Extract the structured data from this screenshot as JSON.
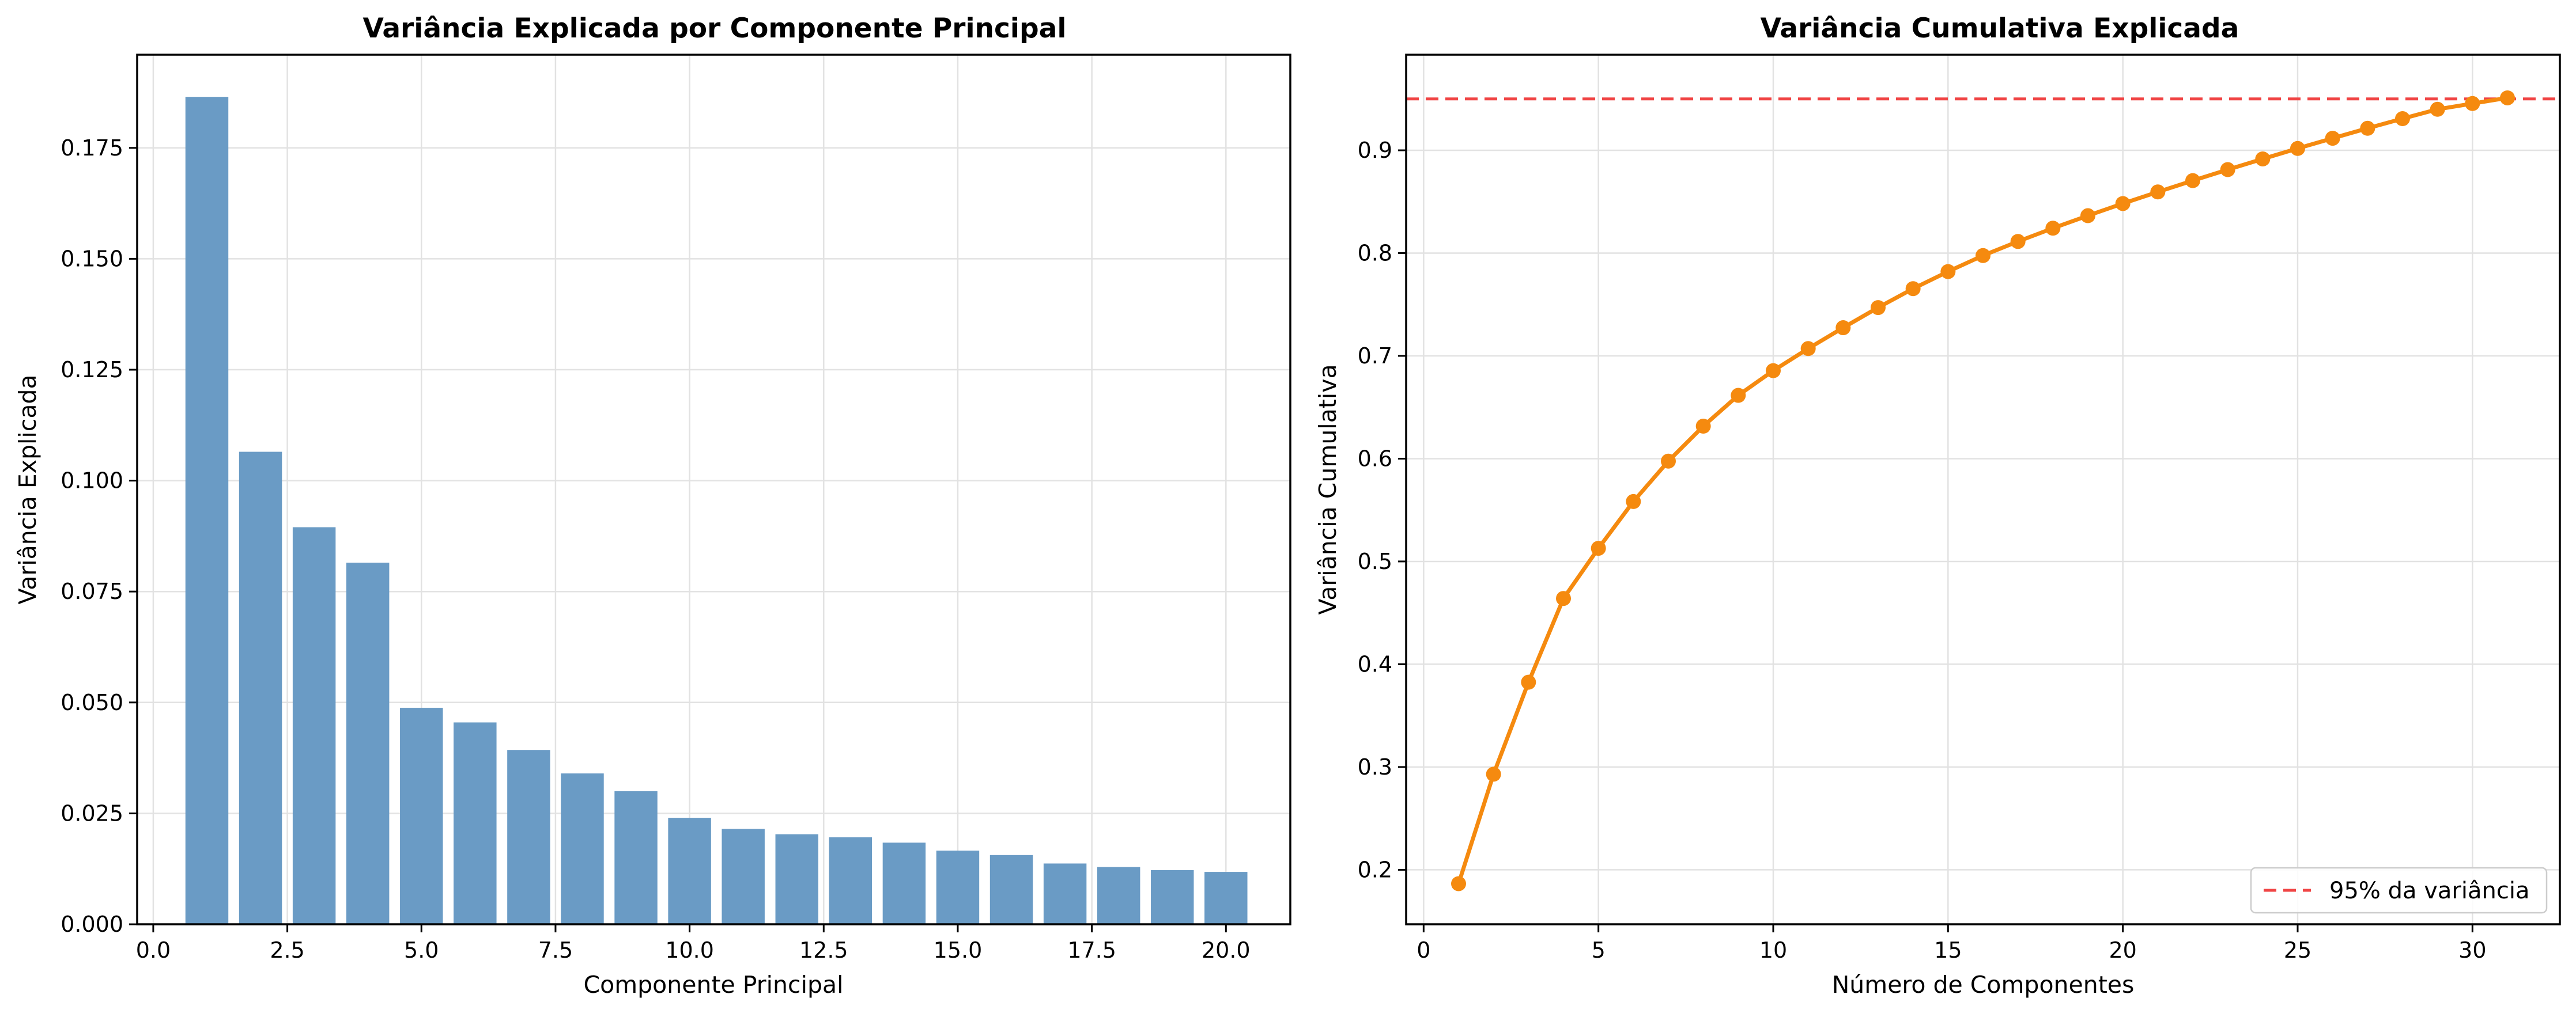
{
  "chart_data": [
    {
      "type": "bar",
      "title": "Variância Explicada por Componente Principal",
      "xlabel": "Componente Principal",
      "ylabel": "Variância Explicada",
      "x": [
        1,
        2,
        3,
        4,
        5,
        6,
        7,
        8,
        9,
        10,
        11,
        12,
        13,
        14,
        15,
        16,
        17,
        18,
        19,
        20
      ],
      "values": [
        0.1865,
        0.1065,
        0.0895,
        0.0815,
        0.0488,
        0.0455,
        0.0393,
        0.034,
        0.03,
        0.024,
        0.0215,
        0.0203,
        0.0196,
        0.0184,
        0.0166,
        0.0156,
        0.0137,
        0.0129,
        0.0122,
        0.0118
      ],
      "xlim": [
        -0.3,
        21.2
      ],
      "ylim": [
        0,
        0.196
      ],
      "xticks": [
        0.0,
        2.5,
        5.0,
        7.5,
        10.0,
        12.5,
        15.0,
        17.5,
        20.0
      ],
      "xtick_labels": [
        "0.0",
        "2.5",
        "5.0",
        "7.5",
        "10.0",
        "12.5",
        "15.0",
        "17.5",
        "20.0"
      ],
      "yticks": [
        0,
        0.025,
        0.05,
        0.075,
        0.1,
        0.125,
        0.15,
        0.175
      ],
      "ytick_labels": [
        "0.000",
        "0.025",
        "0.050",
        "0.075",
        "0.100",
        "0.125",
        "0.150",
        "0.175"
      ],
      "bar_color": "#6a9bc5",
      "grid": true
    },
    {
      "type": "line",
      "title": "Variância Cumulativa Explicada",
      "xlabel": "Número de Componentes",
      "ylabel": "Variância Cumulativa",
      "x": [
        1,
        2,
        3,
        4,
        5,
        6,
        7,
        8,
        9,
        10,
        11,
        12,
        13,
        14,
        15,
        16,
        17,
        18,
        19,
        20,
        21,
        22,
        23,
        24,
        25,
        26,
        27,
        28,
        29,
        30,
        31
      ],
      "values": [
        0.1865,
        0.293,
        0.3825,
        0.464,
        0.5128,
        0.5583,
        0.5976,
        0.6316,
        0.6616,
        0.6856,
        0.7071,
        0.7274,
        0.747,
        0.7654,
        0.782,
        0.7976,
        0.8113,
        0.8242,
        0.8364,
        0.8482,
        0.8595,
        0.8705,
        0.8812,
        0.8916,
        0.9018,
        0.9117,
        0.9214,
        0.9308,
        0.9399,
        0.9455,
        0.951
      ],
      "xlim": [
        -0.5,
        32.5
      ],
      "ylim": [
        0.147,
        0.993
      ],
      "xticks": [
        0,
        5,
        10,
        15,
        20,
        25,
        30
      ],
      "xtick_labels": [
        "0",
        "5",
        "10",
        "15",
        "20",
        "25",
        "30"
      ],
      "yticks": [
        0.2,
        0.3,
        0.4,
        0.5,
        0.6,
        0.7,
        0.8,
        0.9
      ],
      "ytick_labels": [
        "0.2",
        "0.3",
        "0.4",
        "0.5",
        "0.6",
        "0.7",
        "0.8",
        "0.9"
      ],
      "line_color": "#f58a0f",
      "threshold": {
        "value": 0.95,
        "label": "95% da variância",
        "color": "#f04545"
      },
      "legend": {
        "placement": "bottom-right",
        "entries": [
          "95% da variância"
        ]
      },
      "grid": true
    }
  ]
}
